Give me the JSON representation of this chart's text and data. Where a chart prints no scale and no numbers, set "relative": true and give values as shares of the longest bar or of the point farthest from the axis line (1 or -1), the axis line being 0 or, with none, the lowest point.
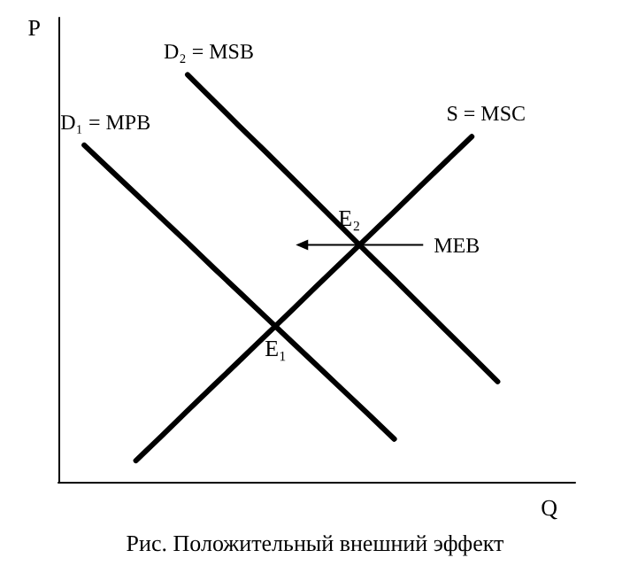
{
  "chart_data": {
    "type": "line",
    "relative": true,
    "title": "Рис. Положительный внешний эффект",
    "xlabel": "Q",
    "ylabel": "P",
    "grid": false,
    "legend": false,
    "marker": "none",
    "line_style": "solid",
    "categories": [
      null,
      null,
      null,
      null,
      null,
      null,
      null,
      null,
      null,
      null,
      null,
      null,
      null,
      null,
      null,
      null,
      null,
      null,
      null,
      null,
      null
    ],
    "series": [
      {
        "name": "D₁ = MPB",
        "color": "#000000",
        "values": [
          null,
          0.827,
          0.767,
          0.707,
          0.647,
          0.587,
          0.526,
          0.466,
          0.406,
          0.346,
          0.286,
          0.226,
          0.166,
          0.105,
          null,
          null,
          null,
          null,
          null,
          null,
          null
        ]
      },
      {
        "name": "D₂ = MSB",
        "color": "#000000",
        "values": [
          null,
          null,
          null,
          null,
          null,
          1.0,
          0.937,
          0.874,
          0.812,
          0.749,
          0.686,
          0.623,
          0.56,
          0.498,
          0.435,
          0.372,
          0.309,
          0.246,
          null,
          null,
          null
        ]
      },
      {
        "name": "S = MSC",
        "color": "#000000",
        "values": [
          null,
          null,
          null,
          0.052,
          0.113,
          0.175,
          0.236,
          0.297,
          0.358,
          0.419,
          0.481,
          0.542,
          0.603,
          0.664,
          0.726,
          0.787,
          0.848,
          null,
          null,
          null,
          null
        ]
      }
    ],
    "annotations": [
      "E₁",
      "E₂",
      "MEB"
    ]
  }
}
